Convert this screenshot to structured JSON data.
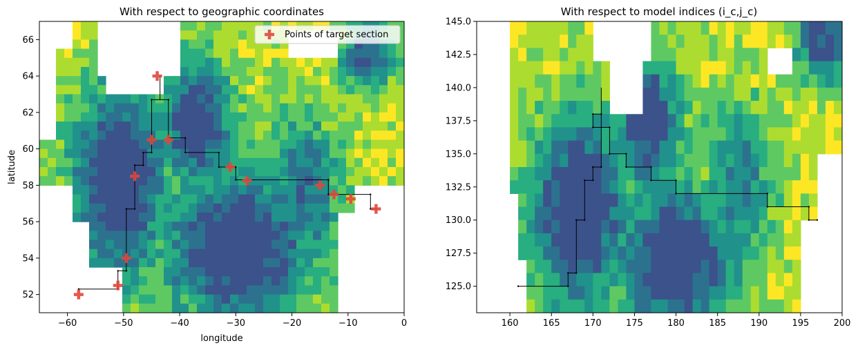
{
  "colors": {
    "land": "#ffffff",
    "track": "#000000",
    "marker": "#e0473c",
    "viridis": [
      "#3b528b",
      "#2c728e",
      "#21918c",
      "#28ae80",
      "#5ec962",
      "#addc30",
      "#fde725"
    ]
  },
  "chart_data": [
    {
      "type": "heatmap",
      "title": "With respect to geographic coordinates",
      "xlabel": "longitude",
      "ylabel": "latitude",
      "xlim": [
        -65,
        0
      ],
      "ylim": [
        51,
        67
      ],
      "xticks": [
        -60,
        -50,
        -40,
        -30,
        -20,
        -10,
        0
      ],
      "xtick_labels": [
        "−60",
        "−50",
        "−40",
        "−30",
        "−20",
        "−10",
        "0"
      ],
      "yticks": [
        52,
        54,
        56,
        58,
        60,
        62,
        64,
        66
      ],
      "ytick_labels": [
        "52",
        "54",
        "56",
        "58",
        "60",
        "62",
        "64",
        "66"
      ],
      "legend": {
        "label": "Points of target section",
        "placement": "upper right"
      },
      "target_points": [
        {
          "x": -58.0,
          "y": 52.0
        },
        {
          "x": -51.0,
          "y": 52.5
        },
        {
          "x": -49.5,
          "y": 54.0
        },
        {
          "x": -48.0,
          "y": 58.5
        },
        {
          "x": -45.0,
          "y": 60.5
        },
        {
          "x": -42.0,
          "y": 60.5
        },
        {
          "x": -44.0,
          "y": 64.0
        },
        {
          "x": -31.0,
          "y": 59.0
        },
        {
          "x": -28.0,
          "y": 58.25
        },
        {
          "x": -15.0,
          "y": 58.0
        },
        {
          "x": -12.5,
          "y": 57.5
        },
        {
          "x": -9.5,
          "y": 57.25
        },
        {
          "x": -5.0,
          "y": 56.7
        }
      ],
      "section_path": [
        [
          -58,
          52.3
        ],
        [
          -51,
          52.3
        ],
        [
          -51,
          53.3
        ],
        [
          -49.5,
          53.3
        ],
        [
          -49.5,
          56.7
        ],
        [
          -48,
          56.7
        ],
        [
          -48,
          59.1
        ],
        [
          -46.5,
          59.1
        ],
        [
          -46.5,
          59.8
        ],
        [
          -45,
          59.8
        ],
        [
          -45,
          62.7
        ],
        [
          -42,
          62.7
        ],
        [
          -42,
          60.6
        ],
        [
          -39,
          60.6
        ],
        [
          -39,
          59.8
        ],
        [
          -33,
          59.8
        ],
        [
          -33,
          59.0
        ],
        [
          -30,
          59.0
        ],
        [
          -30,
          58.3
        ],
        [
          -13.5,
          58.3
        ],
        [
          -13.5,
          57.5
        ],
        [
          -6,
          57.5
        ],
        [
          -6,
          56.7
        ],
        [
          -5,
          56.7
        ]
      ],
      "section_branch": [
        [
          -43.5,
          62.7
        ],
        [
          -43.5,
          64.0
        ]
      ]
    },
    {
      "type": "heatmap",
      "title": "With respect to model indices (i_c,j_c)",
      "xlabel": "",
      "ylabel": "",
      "xlim": [
        156,
        200
      ],
      "ylim": [
        123,
        145
      ],
      "xticks": [
        160,
        165,
        170,
        175,
        180,
        185,
        190,
        195,
        200
      ],
      "xtick_labels": [
        "160",
        "165",
        "170",
        "175",
        "180",
        "185",
        "190",
        "195",
        "200"
      ],
      "yticks": [
        125.0,
        127.5,
        130.0,
        132.5,
        135.0,
        137.5,
        140.0,
        142.5,
        145.0
      ],
      "ytick_labels": [
        "125.0",
        "127.5",
        "130.0",
        "132.5",
        "135.0",
        "137.5",
        "140.0",
        "142.5",
        "145.0"
      ],
      "section_path": [
        [
          161,
          125
        ],
        [
          167,
          125
        ],
        [
          167,
          126
        ],
        [
          168,
          126
        ],
        [
          168,
          130
        ],
        [
          169,
          130
        ],
        [
          169,
          133
        ],
        [
          170,
          133
        ],
        [
          170,
          134
        ],
        [
          171,
          134
        ],
        [
          171,
          138
        ],
        [
          170,
          138
        ],
        [
          170,
          137
        ],
        [
          172,
          137
        ],
        [
          172,
          135
        ],
        [
          174,
          135
        ],
        [
          174,
          134
        ],
        [
          177,
          134
        ],
        [
          177,
          133
        ],
        [
          180,
          133
        ],
        [
          180,
          132
        ],
        [
          191,
          132
        ],
        [
          191,
          131
        ],
        [
          196,
          131
        ],
        [
          196,
          130
        ],
        [
          197,
          130
        ]
      ],
      "section_branch": [
        [
          171,
          138
        ],
        [
          171,
          140
        ]
      ]
    }
  ]
}
